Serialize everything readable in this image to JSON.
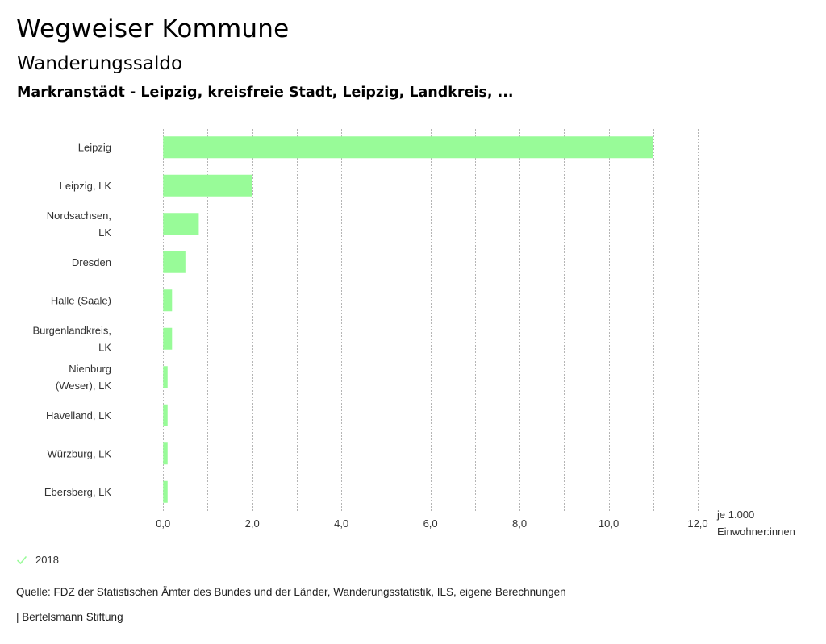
{
  "header": {
    "title": "Wegweiser Kommune",
    "subtitle": "Wanderungssaldo",
    "scope": "Markranstädt - Leipzig, kreisfreie Stadt, Leipzig, Landkreis, ..."
  },
  "chart_data": {
    "type": "bar",
    "orientation": "horizontal",
    "categories": [
      [
        "Leipzig"
      ],
      [
        "Leipzig, LK"
      ],
      [
        "Nordsachsen,",
        "LK"
      ],
      [
        "Dresden"
      ],
      [
        "Halle (Saale)"
      ],
      [
        "Burgenlandkreis,",
        "LK"
      ],
      [
        "Nienburg",
        "(Weser), LK"
      ],
      [
        "Havelland, LK"
      ],
      [
        "Würzburg, LK"
      ],
      [
        "Ebersberg, LK"
      ]
    ],
    "series": [
      {
        "name": "2018",
        "color": "#98fb98",
        "values": [
          11.0,
          2.0,
          0.8,
          0.5,
          0.2,
          0.2,
          0.1,
          0.1,
          0.1,
          0.1
        ]
      }
    ],
    "xlim": [
      -1.0,
      12.0
    ],
    "xticks": [
      0,
      2,
      4,
      6,
      8,
      10,
      12
    ],
    "xtick_labels": [
      "0,0",
      "2,0",
      "4,0",
      "6,0",
      "8,0",
      "10,0",
      "12,0"
    ],
    "xlabel": [
      "je 1.000",
      "Einwohner:innen"
    ],
    "grid": "vertical dotted"
  },
  "legend": {
    "label": "2018",
    "icon": "check-icon",
    "color": "#98fb98"
  },
  "footer": {
    "source": "Quelle: FDZ der Statistischen Ämter des Bundes und der Länder, Wanderungsstatistik, ILS, eigene Berechnungen",
    "publisher": "| Bertelsmann Stiftung"
  }
}
